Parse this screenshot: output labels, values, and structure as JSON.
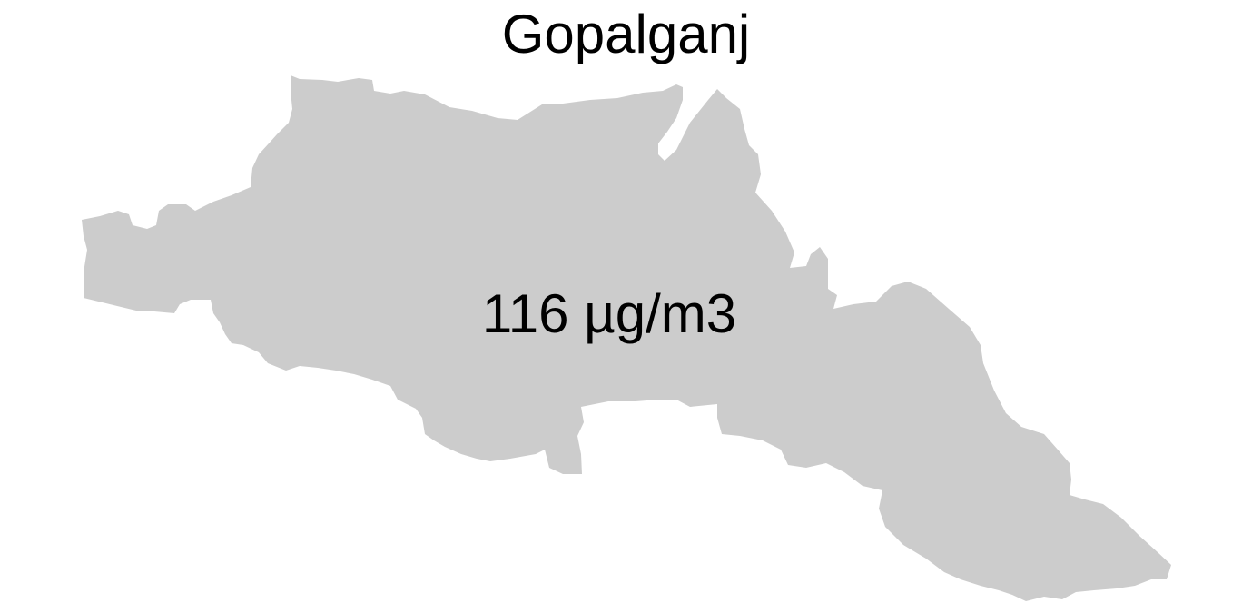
{
  "map": {
    "title": "Gopalganj",
    "value_label": "116 µg/m3",
    "region_fill": "#cccccc",
    "background": "#ffffff"
  }
}
